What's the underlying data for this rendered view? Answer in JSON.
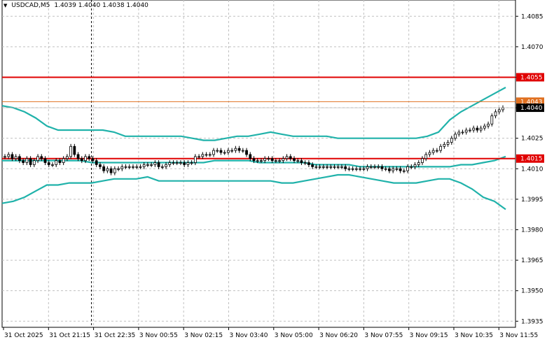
{
  "header": {
    "symbol_timeframe": "USDCAD,M5",
    "ohlc": "1.4039 1.4040 1.4038 1.4040"
  },
  "colors": {
    "background": "#ffffff",
    "grid": "#c0c0c0",
    "bands": "#20b2aa",
    "candles": "#000000",
    "resistance_line": "#e00000",
    "support_line": "#e00000",
    "level_line_1_4043": "#e07020",
    "price_label_bg": "#e00000",
    "current_price_bg": "#000000"
  },
  "chart_data": {
    "type": "candlestick",
    "symbol": "USDCAD",
    "timeframe": "M5",
    "x_tick_labels": [
      "31 Oct 2025",
      "31 Oct 21:15",
      "31 Oct 22:35",
      "3 Nov 00:55",
      "3 Nov 02:15",
      "3 Nov 03:40",
      "3 Nov 05:00",
      "3 Nov 06:20",
      "3 Nov 07:55",
      "3 Nov 09:15",
      "3 Nov 10:35",
      "3 Nov 11:55"
    ],
    "y_tick_values": [
      1.4085,
      1.407,
      1.4055,
      1.404,
      1.4025,
      1.401,
      1.3995,
      1.398,
      1.3965,
      1.395,
      1.3935
    ],
    "y_tick_labels": [
      "1.4085",
      "1.4070",
      "1.4055",
      "1.4040",
      "1.4025",
      "1.4010",
      "1.3995",
      "1.3980",
      "1.3965",
      "1.3950",
      "1.3935"
    ],
    "ylim": [
      1.3932,
      1.4093
    ],
    "grid": true,
    "horizontal_levels": [
      {
        "value": 1.4055,
        "label": "1.4055",
        "color": "#e00000"
      },
      {
        "value": 1.4043,
        "label": "1.4043",
        "color": "#e07020"
      },
      {
        "value": 1.4015,
        "label": "1.4015",
        "color": "#e00000"
      }
    ],
    "current_price": {
      "value": 1.404,
      "label": "1.4040"
    },
    "vertical_marker_time": "31 Oct 22:35",
    "closes": [
      1.4016,
      1.4017,
      1.4015,
      1.4016,
      1.4014,
      1.4013,
      1.4015,
      1.4012,
      1.4014,
      1.4016,
      1.4015,
      1.4013,
      1.4012,
      1.4012,
      1.4014,
      1.4013,
      1.4015,
      1.4016,
      1.4021,
      1.4017,
      1.4015,
      1.4014,
      1.4016,
      1.4015,
      1.4014,
      1.4012,
      1.4011,
      1.4009,
      1.401,
      1.4008,
      1.401,
      1.401,
      1.4011,
      1.4011,
      1.4011,
      1.4011,
      1.4011,
      1.4011,
      1.4012,
      1.4012,
      1.4012,
      1.4013,
      1.4011,
      1.4011,
      1.4012,
      1.4013,
      1.4013,
      1.4013,
      1.4013,
      1.4012,
      1.4013,
      1.4013,
      1.4016,
      1.4016,
      1.4017,
      1.4017,
      1.4017,
      1.4019,
      1.4019,
      1.4018,
      1.4018,
      1.4019,
      1.4019,
      1.402,
      1.4019,
      1.4019,
      1.4017,
      1.4015,
      1.4014,
      1.4014,
      1.4014,
      1.4015,
      1.4015,
      1.4014,
      1.4014,
      1.4014,
      1.4015,
      1.4016,
      1.4015,
      1.4014,
      1.4014,
      1.4013,
      1.4013,
      1.4012,
      1.4011,
      1.4011,
      1.4011,
      1.4011,
      1.4011,
      1.4011,
      1.4011,
      1.4011,
      1.4011,
      1.401,
      1.401,
      1.401,
      1.401,
      1.401,
      1.401,
      1.4011,
      1.4011,
      1.4011,
      1.4011,
      1.401,
      1.401,
      1.4009,
      1.401,
      1.401,
      1.4009,
      1.4009,
      1.4011,
      1.4011,
      1.4012,
      1.4013,
      1.4015,
      1.4017,
      1.4018,
      1.4019,
      1.4019,
      1.4021,
      1.4022,
      1.4023,
      1.4025,
      1.4027,
      1.4028,
      1.4028,
      1.4029,
      1.4029,
      1.403,
      1.4029,
      1.403,
      1.4031,
      1.4032,
      1.4036,
      1.4038,
      1.4039,
      1.404
    ],
    "upper_band": [
      1.4041,
      1.404,
      1.4038,
      1.4035,
      1.4031,
      1.4029,
      1.4029,
      1.4029,
      1.4029,
      1.4029,
      1.4028,
      1.4026,
      1.4026,
      1.4026,
      1.4026,
      1.4026,
      1.4026,
      1.4025,
      1.4024,
      1.4024,
      1.4025,
      1.4026,
      1.4026,
      1.4027,
      1.4028,
      1.4027,
      1.4026,
      1.4026,
      1.4026,
      1.4026,
      1.4025,
      1.4025,
      1.4025,
      1.4025,
      1.4025,
      1.4025,
      1.4025,
      1.4025,
      1.4026,
      1.4028,
      1.4034,
      1.4038,
      1.4041,
      1.4044,
      1.4047,
      1.405
    ],
    "middle_band": [
      1.4014,
      1.4014,
      1.4014,
      1.4014,
      1.4014,
      1.4014,
      1.4014,
      1.4014,
      1.4013,
      1.4013,
      1.4013,
      1.4013,
      1.4013,
      1.4013,
      1.4013,
      1.4013,
      1.4013,
      1.4013,
      1.4013,
      1.4014,
      1.4014,
      1.4014,
      1.4014,
      1.4013,
      1.4013,
      1.4013,
      1.4013,
      1.4013,
      1.4012,
      1.4012,
      1.4012,
      1.4012,
      1.4011,
      1.4011,
      1.4011,
      1.4011,
      1.4011,
      1.4011,
      1.4011,
      1.4011,
      1.4011,
      1.4012,
      1.4012,
      1.4013,
      1.4014,
      1.4016
    ],
    "lower_band": [
      1.3993,
      1.3994,
      1.3996,
      1.3999,
      1.4002,
      1.4002,
      1.4003,
      1.4003,
      1.4003,
      1.4004,
      1.4005,
      1.4005,
      1.4005,
      1.4006,
      1.4004,
      1.4004,
      1.4004,
      1.4004,
      1.4004,
      1.4004,
      1.4004,
      1.4004,
      1.4004,
      1.4004,
      1.4004,
      1.4003,
      1.4003,
      1.4004,
      1.4005,
      1.4006,
      1.4007,
      1.4007,
      1.4006,
      1.4005,
      1.4004,
      1.4003,
      1.4003,
      1.4003,
      1.4004,
      1.4005,
      1.4005,
      1.4003,
      1.4,
      1.3996,
      1.3994,
      1.399
    ]
  }
}
